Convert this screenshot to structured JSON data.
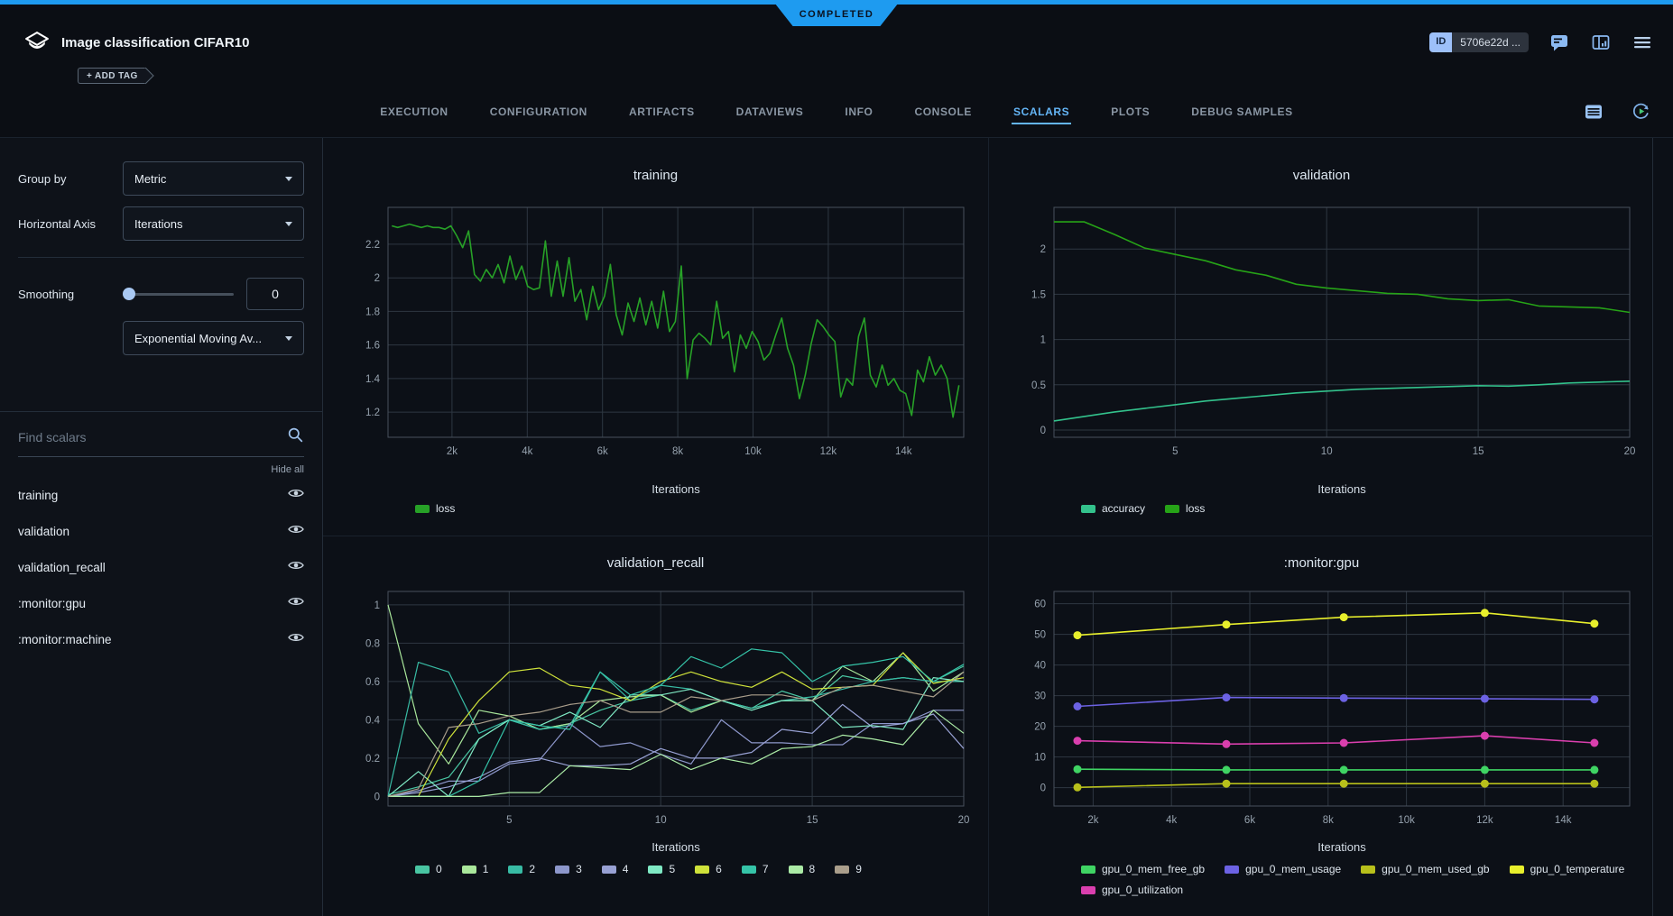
{
  "status_banner": {
    "label": "COMPLETED"
  },
  "header": {
    "title": "Image classification CIFAR10",
    "add_tag_label": "+ ADD TAG",
    "id_label": "ID",
    "id_value": "5706e22d ..."
  },
  "tabs": {
    "items": [
      "EXECUTION",
      "CONFIGURATION",
      "ARTIFACTS",
      "DATAVIEWS",
      "INFO",
      "CONSOLE",
      "SCALARS",
      "PLOTS",
      "DEBUG SAMPLES"
    ],
    "active": "SCALARS"
  },
  "sidebar": {
    "group_by_label": "Group by",
    "group_by_value": "Metric",
    "horizontal_axis_label": "Horizontal Axis",
    "horizontal_axis_value": "Iterations",
    "smoothing_label": "Smoothing",
    "smoothing_value": "0",
    "smoothing_type_value": "Exponential Moving Av...",
    "search_placeholder": "Find scalars",
    "hide_all_label": "Hide all",
    "metrics": [
      "training",
      "validation",
      "validation_recall",
      ":monitor:gpu",
      ":monitor:machine"
    ]
  },
  "colors": {
    "accent_blue": "#1e9bf0",
    "active_tab": "#64b5f6",
    "badge_text": "#0a1220"
  },
  "chart_data": [
    {
      "type": "line",
      "title": "training",
      "xlabel": "Iterations",
      "row": 1,
      "xrange": [
        300,
        15600
      ],
      "yrange": [
        1.05,
        2.42
      ],
      "xticks": {
        "vals": [
          2000,
          4000,
          6000,
          8000,
          10000,
          12000,
          14000
        ],
        "labels": [
          "2k",
          "4k",
          "6k",
          "8k",
          "10k",
          "12k",
          "14k"
        ]
      },
      "yticks": {
        "vals": [
          1.2,
          1.4,
          1.6,
          1.8,
          2.0,
          2.2
        ],
        "labels": [
          "1.2",
          "1.4",
          "1.6",
          "1.8",
          "2",
          "2.2"
        ]
      },
      "markers": false,
      "legend_position": "bottom-left",
      "grid": true,
      "series": [
        {
          "name": "loss",
          "color": "#27a127",
          "x": {
            "start": 400,
            "step": 157
          },
          "y": [
            2.31,
            2.3,
            2.31,
            2.32,
            2.31,
            2.3,
            2.31,
            2.3,
            2.3,
            2.29,
            2.31,
            2.25,
            2.18,
            2.28,
            2.02,
            1.98,
            2.05,
            2.0,
            2.08,
            1.97,
            2.13,
            1.99,
            2.07,
            1.95,
            1.93,
            1.94,
            2.22,
            1.89,
            2.1,
            1.89,
            2.12,
            1.86,
            1.93,
            1.75,
            1.95,
            1.81,
            1.89,
            2.08,
            1.78,
            1.66,
            1.85,
            1.74,
            1.88,
            1.72,
            1.86,
            1.7,
            1.92,
            1.68,
            1.74,
            2.07,
            1.4,
            1.63,
            1.67,
            1.64,
            1.6,
            1.86,
            1.64,
            1.68,
            1.44,
            1.66,
            1.58,
            1.68,
            1.62,
            1.51,
            1.55,
            1.66,
            1.76,
            1.58,
            1.48,
            1.28,
            1.42,
            1.61,
            1.75,
            1.71,
            1.66,
            1.62,
            1.29,
            1.4,
            1.36,
            1.65,
            1.76,
            1.42,
            1.35,
            1.48,
            1.36,
            1.4,
            1.33,
            1.31,
            1.18,
            1.45,
            1.38,
            1.53,
            1.42,
            1.48,
            1.4,
            1.17,
            1.36
          ]
        }
      ]
    },
    {
      "type": "line",
      "title": "validation",
      "xlabel": "Iterations",
      "row": 1,
      "xrange": [
        1,
        20
      ],
      "yrange": [
        -0.08,
        2.46
      ],
      "xticks": {
        "vals": [
          5,
          10,
          15,
          20
        ],
        "labels": [
          "5",
          "10",
          "15",
          "20"
        ]
      },
      "yticks": {
        "vals": [
          0,
          0.5,
          1,
          1.5,
          2
        ],
        "labels": [
          "0",
          "0.5",
          "1",
          "1.5",
          "2"
        ]
      },
      "markers": false,
      "legend_position": "bottom-left",
      "grid": true,
      "series": [
        {
          "name": "accuracy",
          "color": "#33c28c",
          "x": {
            "start": 1,
            "step": 1
          },
          "y": [
            0.1,
            0.15,
            0.2,
            0.24,
            0.28,
            0.32,
            0.35,
            0.38,
            0.41,
            0.43,
            0.45,
            0.46,
            0.47,
            0.48,
            0.49,
            0.485,
            0.5,
            0.52,
            0.53,
            0.54
          ]
        },
        {
          "name": "loss",
          "color": "#26a317",
          "x": {
            "start": 1,
            "step": 1
          },
          "y": [
            2.3,
            2.3,
            2.16,
            2.01,
            1.94,
            1.87,
            1.77,
            1.71,
            1.61,
            1.57,
            1.54,
            1.51,
            1.5,
            1.45,
            1.43,
            1.44,
            1.37,
            1.36,
            1.35,
            1.3
          ]
        }
      ]
    },
    {
      "type": "line",
      "title": "validation_recall",
      "xlabel": "Iterations",
      "row": 2,
      "xrange": [
        1,
        20
      ],
      "yrange": [
        -0.05,
        1.07
      ],
      "xticks": {
        "vals": [
          5,
          10,
          15,
          20
        ],
        "labels": [
          "5",
          "10",
          "15",
          "20"
        ]
      },
      "yticks": {
        "vals": [
          0,
          0.2,
          0.4,
          0.6,
          0.8,
          1
        ],
        "labels": [
          "0",
          "0.2",
          "0.4",
          "0.6",
          "0.8",
          "1"
        ]
      },
      "markers": false,
      "legend_position": "bottom-left",
      "grid": true,
      "series": [
        {
          "name": "0",
          "color": "#49c5a2",
          "x": {
            "start": 1,
            "step": 1
          },
          "y": [
            0.01,
            0.05,
            0.1,
            0.3,
            0.4,
            0.35,
            0.38,
            0.45,
            0.5,
            0.53,
            0.45,
            0.5,
            0.46,
            0.55,
            0.5,
            0.63,
            0.6,
            0.62,
            0.6,
            0.68
          ]
        },
        {
          "name": "1",
          "color": "#a9e79b",
          "x": {
            "start": 1,
            "step": 1
          },
          "y": [
            1.0,
            0.38,
            0.17,
            0.45,
            0.42,
            0.35,
            0.38,
            0.5,
            0.52,
            0.53,
            0.44,
            0.5,
            0.46,
            0.5,
            0.5,
            0.68,
            0.6,
            0.75,
            0.55,
            0.65
          ]
        },
        {
          "name": "2",
          "color": "#38bba4",
          "x": {
            "start": 1,
            "step": 1
          },
          "y": [
            0.0,
            0.7,
            0.65,
            0.33,
            0.4,
            0.35,
            0.37,
            0.65,
            0.5,
            0.58,
            0.56,
            0.5,
            0.46,
            0.5,
            0.52,
            0.56,
            0.6,
            0.62,
            0.6,
            0.6
          ]
        },
        {
          "name": "3",
          "color": "#8d97cb",
          "x": {
            "start": 1,
            "step": 1
          },
          "y": [
            0.0,
            0.03,
            0.08,
            0.08,
            0.17,
            0.19,
            0.38,
            0.26,
            0.28,
            0.22,
            0.17,
            0.4,
            0.28,
            0.28,
            0.27,
            0.27,
            0.38,
            0.38,
            0.45,
            0.45
          ]
        },
        {
          "name": "4",
          "color": "#98a1d4",
          "x": {
            "start": 1,
            "step": 1
          },
          "y": [
            0.0,
            0.02,
            0.05,
            0.1,
            0.18,
            0.2,
            0.16,
            0.16,
            0.17,
            0.25,
            0.2,
            0.2,
            0.23,
            0.35,
            0.33,
            0.48,
            0.36,
            0.38,
            0.43,
            0.25
          ]
        },
        {
          "name": "5",
          "color": "#7fe9c4",
          "x": {
            "start": 1,
            "step": 1
          },
          "y": [
            0.0,
            0.13,
            0.0,
            0.3,
            0.4,
            0.37,
            0.44,
            0.36,
            0.53,
            0.53,
            0.56,
            0.5,
            0.45,
            0.5,
            0.5,
            0.36,
            0.37,
            0.35,
            0.62,
            0.6
          ]
        },
        {
          "name": "6",
          "color": "#cfe23a",
          "x": {
            "start": 1,
            "step": 1
          },
          "y": [
            0.0,
            0.0,
            0.3,
            0.5,
            0.65,
            0.67,
            0.58,
            0.56,
            0.5,
            0.6,
            0.65,
            0.6,
            0.57,
            0.65,
            0.56,
            0.57,
            0.58,
            0.75,
            0.59,
            0.62
          ]
        },
        {
          "name": "7",
          "color": "#35c4a8",
          "x": {
            "start": 1,
            "step": 1
          },
          "y": [
            0.0,
            0.0,
            0.0,
            0.08,
            0.4,
            0.37,
            0.35,
            0.65,
            0.53,
            0.58,
            0.73,
            0.67,
            0.77,
            0.75,
            0.6,
            0.68,
            0.7,
            0.73,
            0.6,
            0.69
          ]
        },
        {
          "name": "8",
          "color": "#abeba6",
          "x": {
            "start": 1,
            "step": 1
          },
          "y": [
            0.0,
            0.0,
            0.0,
            0.0,
            0.02,
            0.02,
            0.16,
            0.15,
            0.14,
            0.22,
            0.14,
            0.2,
            0.17,
            0.25,
            0.26,
            0.32,
            0.3,
            0.27,
            0.45,
            0.33
          ]
        },
        {
          "name": "9",
          "color": "#aa9e8b",
          "x": {
            "start": 1,
            "step": 1
          },
          "y": [
            0.0,
            0.04,
            0.36,
            0.38,
            0.42,
            0.44,
            0.48,
            0.5,
            0.44,
            0.44,
            0.52,
            0.5,
            0.53,
            0.53,
            0.5,
            0.57,
            0.58,
            0.55,
            0.52,
            0.65
          ]
        }
      ]
    },
    {
      "type": "line",
      "title": ":monitor:gpu",
      "xlabel": "Iterations",
      "row": 2,
      "xrange": [
        1000,
        15700
      ],
      "yrange": [
        -6,
        64
      ],
      "xticks": {
        "vals": [
          2000,
          4000,
          6000,
          8000,
          10000,
          12000,
          14000
        ],
        "labels": [
          "2k",
          "4k",
          "6k",
          "8k",
          "10k",
          "12k",
          "14k"
        ]
      },
      "yticks": {
        "vals": [
          0,
          10,
          20,
          30,
          40,
          50,
          60
        ],
        "labels": [
          "0",
          "10",
          "20",
          "30",
          "40",
          "50",
          "60"
        ]
      },
      "markers": true,
      "legend_position": "bottom-left",
      "grid": true,
      "series": [
        {
          "name": "gpu_0_mem_free_gb",
          "color": "#3fd463",
          "x": [
            1600,
            5400,
            8400,
            12000,
            14800
          ],
          "y": [
            6.0,
            5.8,
            5.8,
            5.8,
            5.8
          ]
        },
        {
          "name": "gpu_0_mem_usage",
          "color": "#6c62e3",
          "x": [
            1600,
            5400,
            8400,
            12000,
            14800
          ],
          "y": [
            26.5,
            29.4,
            29.2,
            29.0,
            28.8
          ]
        },
        {
          "name": "gpu_0_mem_used_gb",
          "color": "#b8c01b",
          "x": [
            1600,
            5400,
            8400,
            12000,
            14800
          ],
          "y": [
            0.1,
            1.3,
            1.3,
            1.3,
            1.3
          ]
        },
        {
          "name": "gpu_0_temperature",
          "color": "#e8ef2c",
          "x": [
            1600,
            5400,
            8400,
            12000,
            14800
          ],
          "y": [
            49.7,
            53.2,
            55.6,
            57.0,
            53.5
          ]
        },
        {
          "name": "gpu_0_utilization",
          "color": "#da3fae",
          "x": [
            1600,
            5400,
            8400,
            12000,
            14800
          ],
          "y": [
            15.3,
            14.2,
            14.6,
            16.9,
            14.6
          ]
        }
      ]
    }
  ]
}
